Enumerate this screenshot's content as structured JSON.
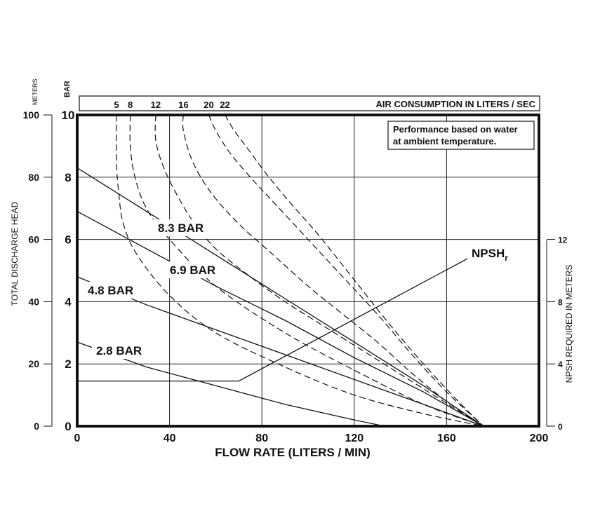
{
  "chart_data": {
    "type": "line",
    "xlabel": "FLOW RATE (LITERS / MIN)",
    "xlim": [
      0,
      200
    ],
    "x_ticks": [
      "0",
      "40",
      "80",
      "120",
      "160",
      "200"
    ],
    "left_axis_meters": {
      "unit_label": "METERS",
      "label": "TOTAL DISCHARGE HEAD",
      "ylim": [
        0,
        100
      ],
      "ticks": [
        "0",
        "20",
        "40",
        "60",
        "80",
        "100"
      ]
    },
    "left_axis_bar": {
      "unit_label": "BAR",
      "ylim": [
        0,
        10
      ],
      "ticks": [
        "0",
        "2",
        "4",
        "6",
        "8",
        "10"
      ]
    },
    "right_axis": {
      "label": "NPSH REQUIRED IN METERS",
      "ylim": [
        0,
        20
      ],
      "ticks": [
        "0",
        "4",
        "8",
        "12"
      ]
    },
    "air_axis": {
      "label": "AIR CONSUMPTION IN LITERS / SEC",
      "ticks": [
        "5",
        "8",
        "12",
        "16",
        "20",
        "22"
      ],
      "tick_flow": [
        17,
        23,
        34,
        46,
        57,
        64
      ]
    },
    "note": [
      "Performance based on water",
      "at ambient temperature."
    ],
    "series": [
      {
        "name": "8.3 BAR",
        "style": "solid",
        "x": [
          0,
          30,
          60,
          90,
          120,
          150,
          176
        ],
        "y": [
          83,
          69,
          55,
          41,
          27,
          13,
          0
        ]
      },
      {
        "name": "6.9 BAR",
        "style": "solid",
        "x": [
          0,
          30,
          60,
          90,
          120,
          150,
          176
        ],
        "y": [
          69,
          57,
          45,
          34,
          22,
          11,
          0
        ]
      },
      {
        "name": "4.8 BAR",
        "style": "solid",
        "x": [
          0,
          30,
          60,
          90,
          120,
          150,
          176
        ],
        "y": [
          48,
          39,
          31,
          23,
          15,
          7,
          0
        ]
      },
      {
        "name": "2.8 BAR",
        "style": "solid",
        "x": [
          0,
          30,
          60,
          90,
          120,
          133
        ],
        "y": [
          27,
          19,
          13,
          7,
          2,
          0
        ]
      },
      {
        "name": "NPSHr",
        "style": "solid",
        "axis": "right",
        "x": [
          0,
          70,
          172
        ],
        "y": [
          2.9,
          2.9,
          11
        ]
      },
      {
        "name": "5",
        "style": "dashed",
        "x": [
          17,
          17,
          18,
          20,
          26,
          40,
          60,
          90,
          120,
          150,
          176
        ],
        "y": [
          100,
          85,
          75,
          65,
          55,
          42,
          30,
          19,
          10,
          4,
          0
        ]
      },
      {
        "name": "8",
        "style": "dashed",
        "x": [
          23,
          23,
          25,
          30,
          40,
          60,
          90,
          120,
          150,
          176
        ],
        "y": [
          100,
          90,
          80,
          70,
          60,
          45,
          30,
          18,
          7,
          0
        ]
      },
      {
        "name": "12",
        "style": "dashed",
        "x": [
          34,
          34,
          37,
          42,
          50,
          60,
          75,
          90,
          105,
          120,
          135,
          150,
          165,
          176
        ],
        "y": [
          100,
          92,
          84,
          76,
          66,
          57,
          48,
          40,
          33,
          26,
          19,
          12,
          5,
          0
        ]
      },
      {
        "name": "16",
        "style": "dashed",
        "x": [
          46,
          46,
          50,
          58,
          70,
          85,
          100,
          115,
          130,
          145,
          160,
          176
        ],
        "y": [
          100,
          95,
          85,
          75,
          65,
          55,
          45,
          36,
          27,
          17,
          8,
          0
        ]
      },
      {
        "name": "20",
        "style": "dashed",
        "x": [
          57,
          60,
          66,
          75,
          85,
          100,
          115,
          130,
          145,
          160,
          176
        ],
        "y": [
          100,
          95,
          88,
          80,
          72,
          60,
          48,
          36,
          23,
          11,
          0
        ]
      },
      {
        "name": "22",
        "style": "dashed",
        "x": [
          64,
          68,
          74,
          82,
          92,
          105,
          120,
          135,
          150,
          165,
          176
        ],
        "y": [
          100,
          95,
          89,
          81,
          72,
          61,
          47,
          33,
          20,
          8,
          0
        ]
      }
    ]
  }
}
